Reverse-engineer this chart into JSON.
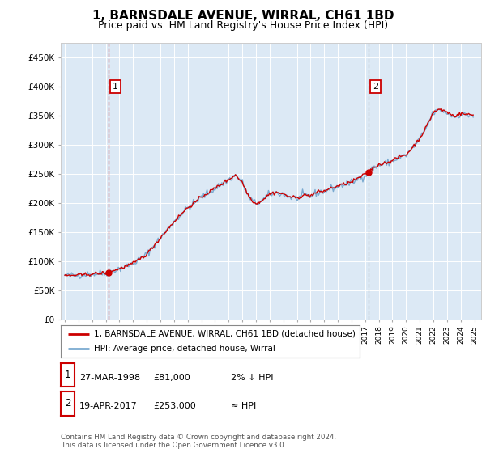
{
  "title": "1, BARNSDALE AVENUE, WIRRAL, CH61 1BD",
  "subtitle": "Price paid vs. HM Land Registry's House Price Index (HPI)",
  "title_fontsize": 11,
  "subtitle_fontsize": 9,
  "background_color": "#ffffff",
  "plot_bg_color": "#dce9f5",
  "line1_color": "#cc0000",
  "line2_color": "#7aaad0",
  "sale1_price": 81000,
  "sale1_x": 1998.2083,
  "sale2_price": 253000,
  "sale2_x": 2017.25,
  "ylim": [
    0,
    475000
  ],
  "yticks": [
    0,
    50000,
    100000,
    150000,
    200000,
    250000,
    300000,
    350000,
    400000,
    450000
  ],
  "xlim_left": 1994.7,
  "xlim_right": 2025.5,
  "legend_line1": "1, BARNSDALE AVENUE, WIRRAL, CH61 1BD (detached house)",
  "legend_line2": "HPI: Average price, detached house, Wirral",
  "annotation1_text": "1",
  "annotation2_text": "2",
  "table_row1": [
    "1",
    "27-MAR-1998",
    "£81,000",
    "2% ↓ HPI"
  ],
  "table_row2": [
    "2",
    "19-APR-2017",
    "£253,000",
    "≈ HPI"
  ],
  "footer_line1": "Contains HM Land Registry data © Crown copyright and database right 2024.",
  "footer_line2": "This data is licensed under the Open Government Licence v3.0."
}
